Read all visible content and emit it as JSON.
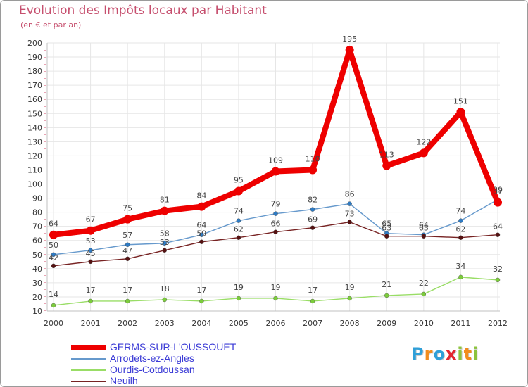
{
  "title": "Evolution des Impôts locaux par Habitant",
  "subtitle": "(en € et par an)",
  "logo": {
    "text": "Proxiti",
    "letters": [
      {
        "char": "P",
        "color": "#2f9fd8"
      },
      {
        "char": "r",
        "color": "#f28c1c"
      },
      {
        "char": "o",
        "color": "#2f9fd8"
      },
      {
        "char": "x",
        "color": "#e3262f"
      },
      {
        "char": "i",
        "color": "#8cc43d"
      },
      {
        "char": "t",
        "color": "#f28c1c"
      },
      {
        "char": "i",
        "color": "#8cc43d"
      }
    ]
  },
  "legend": {
    "items": [
      {
        "label": "GERMS-SUR-L'OUSSOUET",
        "color": "#ee0000",
        "thickness": "thick"
      },
      {
        "label": "Arrodets-ez-Angles",
        "color": "#6699cc",
        "thickness": "thin"
      },
      {
        "label": "Ourdis-Cotdoussan",
        "color": "#99dd66",
        "thickness": "thin"
      },
      {
        "label": "Neuilh",
        "color": "#772222",
        "thickness": "thin"
      }
    ]
  },
  "chart_data": {
    "type": "line",
    "title": "Evolution des Impôts locaux par Habitant",
    "subtitle": "(en € et par an)",
    "xlabel": "",
    "ylabel": "",
    "categories": [
      "2000",
      "2001",
      "2002",
      "2003",
      "2004",
      "2005",
      "2006",
      "2007",
      "2008",
      "2009",
      "2010",
      "2011",
      "2012"
    ],
    "ylim": [
      10,
      200
    ],
    "yticks": [
      10,
      20,
      30,
      40,
      50,
      60,
      70,
      80,
      90,
      100,
      110,
      120,
      130,
      140,
      150,
      160,
      170,
      180,
      190,
      200
    ],
    "grid": true,
    "series": [
      {
        "name": "GERMS-SUR-L'OUSSOUET",
        "color": "#ee0000",
        "emphasis": true,
        "values": [
          64,
          67,
          75,
          81,
          84,
          95,
          109,
          110,
          195,
          113,
          122,
          151,
          87
        ]
      },
      {
        "name": "Arrodets-ez-Angles",
        "color": "#6699cc",
        "marker_color": "#2e7bc4",
        "emphasis": false,
        "values": [
          50,
          53,
          57,
          58,
          64,
          74,
          79,
          82,
          86,
          65,
          64,
          74,
          89
        ]
      },
      {
        "name": "Ourdis-Cotdoussan",
        "color": "#99dd66",
        "marker_color": "#7ccc3c",
        "emphasis": false,
        "values": [
          14,
          17,
          17,
          18,
          17,
          19,
          19,
          17,
          19,
          21,
          22,
          34,
          32
        ]
      },
      {
        "name": "Neuilh",
        "color": "#772222",
        "marker_color": "#551111",
        "emphasis": false,
        "values": [
          42,
          45,
          47,
          53,
          59,
          62,
          66,
          69,
          73,
          63,
          63,
          62,
          64
        ]
      }
    ]
  }
}
